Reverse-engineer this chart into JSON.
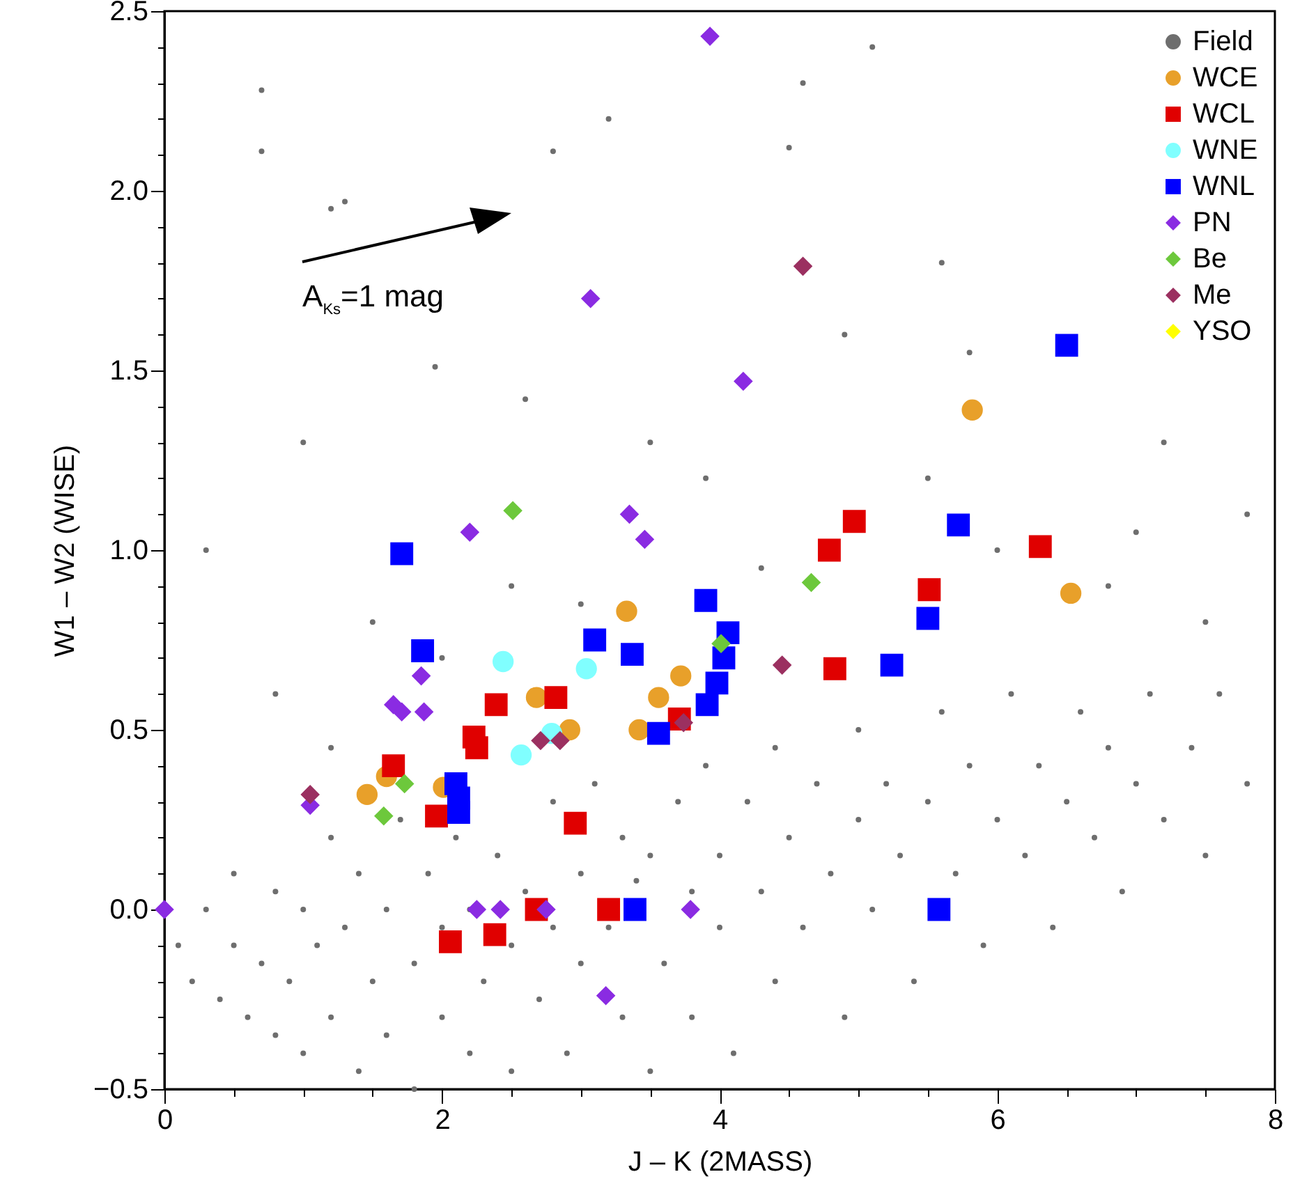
{
  "chart_data": {
    "type": "scatter",
    "xlabel": "J – K (2MASS)",
    "ylabel": "W1 – W2 (WISE)",
    "xlim": [
      0,
      8
    ],
    "ylim": [
      -0.5,
      2.5
    ],
    "xticks": [
      0,
      {
        "value": 0.5,
        "label": null
      },
      {
        "value": 1,
        "label": null
      },
      {
        "value": 1.5,
        "label": null
      },
      2,
      {
        "value": 2.5,
        "label": null
      },
      {
        "value": 3,
        "label": null
      },
      {
        "value": 3.5,
        "label": null
      },
      4,
      {
        "value": 4.5,
        "label": null
      },
      {
        "value": 5,
        "label": null
      },
      {
        "value": 5.5,
        "label": null
      },
      6,
      {
        "value": 6.5,
        "label": null
      },
      {
        "value": 7,
        "label": null
      },
      {
        "value": 7.5,
        "label": null
      },
      8
    ],
    "yticks": [
      {
        "value": -0.5,
        "label": "−0.5"
      },
      {
        "value": -0.4,
        "label": null
      },
      {
        "value": -0.3,
        "label": null
      },
      {
        "value": -0.2,
        "label": null
      },
      {
        "value": -0.1,
        "label": null
      },
      {
        "value": 0,
        "label": "0.0"
      },
      {
        "value": 0.1,
        "label": null
      },
      {
        "value": 0.2,
        "label": null
      },
      {
        "value": 0.3,
        "label": null
      },
      {
        "value": 0.4,
        "label": null
      },
      0.5,
      {
        "value": 0.6,
        "label": null
      },
      {
        "value": 0.7,
        "label": null
      },
      {
        "value": 0.8,
        "label": null
      },
      {
        "value": 0.9,
        "label": null
      },
      {
        "value": 1,
        "label": "1.0"
      },
      {
        "value": 1.1,
        "label": null
      },
      {
        "value": 1.2,
        "label": null
      },
      {
        "value": 1.3,
        "label": null
      },
      {
        "value": 1.4,
        "label": null
      },
      1.5,
      {
        "value": 1.6,
        "label": null
      },
      {
        "value": 1.7,
        "label": null
      },
      {
        "value": 1.8,
        "label": null
      },
      {
        "value": 1.9,
        "label": null
      },
      {
        "value": 2,
        "label": "2.0"
      },
      {
        "value": 2.1,
        "label": null
      },
      {
        "value": 2.2,
        "label": null
      },
      {
        "value": 2.3,
        "label": null
      },
      {
        "value": 2.4,
        "label": null
      },
      2.5
    ],
    "grid": false,
    "legend": "top right",
    "annotations": [
      "A$_{Ks}$=1 mag"
    ],
    "series": [
      {
        "name": "Field",
        "color": "#6e6e6e",
        "marker": "circle",
        "x": [
          0.1,
          0.2,
          0.3,
          0.4,
          0.5,
          0.5,
          0.6,
          0.7,
          0.8,
          0.8,
          0.9,
          1.0,
          1.0,
          1.1,
          1.2,
          1.2,
          1.3,
          1.4,
          1.4,
          1.5,
          1.6,
          1.6,
          1.7,
          1.8,
          1.8,
          1.9,
          2.0,
          2.0,
          2.1,
          2.2,
          2.2,
          2.3,
          2.4,
          2.5,
          2.5,
          2.6,
          2.7,
          2.8,
          2.8,
          2.9,
          3.0,
          3.0,
          3.1,
          3.2,
          3.3,
          3.3,
          3.4,
          3.5,
          3.5,
          3.6,
          3.7,
          3.8,
          3.8,
          3.9,
          4.0,
          4.0,
          4.1,
          4.2,
          4.3,
          4.4,
          4.4,
          4.5,
          4.6,
          4.7,
          4.8,
          4.9,
          5.0,
          5.0,
          5.1,
          5.2,
          5.3,
          5.4,
          5.5,
          5.6,
          5.7,
          5.8,
          5.9,
          6.0,
          6.1,
          6.2,
          6.3,
          6.4,
          6.5,
          6.6,
          6.7,
          6.8,
          6.9,
          7.0,
          7.1,
          7.2,
          7.4,
          7.5,
          7.6,
          7.8,
          0.7,
          0.7,
          1.2,
          1.3,
          2.8,
          1.95,
          2.6,
          3.5,
          4.6,
          5.1,
          5.6,
          4.9,
          7.2,
          7.8,
          0.3,
          1.5,
          0.8,
          2.5,
          3.9,
          5.5,
          6.8,
          7.5,
          1.2,
          2.0,
          3.0,
          4.3,
          6.0,
          7.0,
          4.5,
          3.2,
          1.0,
          5.8
        ],
        "values": [
          -0.1,
          -0.2,
          0.0,
          -0.25,
          -0.1,
          0.1,
          -0.3,
          -0.15,
          0.05,
          -0.35,
          -0.2,
          0.0,
          -0.4,
          -0.1,
          0.2,
          -0.3,
          -0.05,
          -0.45,
          0.1,
          -0.2,
          0.0,
          -0.35,
          0.25,
          -0.15,
          -0.5,
          0.1,
          -0.3,
          -0.05,
          0.2,
          -0.4,
          0.0,
          -0.2,
          0.15,
          -0.1,
          -0.45,
          0.05,
          -0.25,
          0.3,
          -0.05,
          -0.4,
          0.1,
          -0.15,
          0.35,
          -0.05,
          -0.3,
          0.2,
          0.08,
          -0.45,
          0.15,
          -0.15,
          0.3,
          0.05,
          -0.3,
          0.4,
          -0.05,
          0.15,
          -0.4,
          0.3,
          0.05,
          -0.2,
          0.45,
          0.2,
          -0.05,
          0.35,
          0.1,
          -0.3,
          0.25,
          0.5,
          0.0,
          0.35,
          0.15,
          -0.2,
          0.3,
          0.55,
          0.1,
          0.4,
          -0.1,
          0.25,
          0.6,
          0.15,
          0.4,
          -0.05,
          0.3,
          0.55,
          0.2,
          0.45,
          0.05,
          0.35,
          0.6,
          0.25,
          0.45,
          0.15,
          0.6,
          0.35,
          2.28,
          2.11,
          1.95,
          1.97,
          2.11,
          1.51,
          1.42,
          1.3,
          2.3,
          2.4,
          1.8,
          1.6,
          1.3,
          1.1,
          1.0,
          0.8,
          0.6,
          0.9,
          1.2,
          1.2,
          0.9,
          0.8,
          0.45,
          0.7,
          0.85,
          0.95,
          1.0,
          1.05,
          2.12,
          2.2,
          1.3,
          1.55
        ]
      },
      {
        "name": "WCE",
        "color": "#e8a02a",
        "marker": "circle",
        "x": [
          1.46,
          1.6,
          2.01,
          2.68,
          2.92,
          3.33,
          3.42,
          3.56,
          3.72,
          5.82,
          6.53
        ],
        "values": [
          0.32,
          0.37,
          0.34,
          0.59,
          0.5,
          0.83,
          0.5,
          0.59,
          0.65,
          1.39,
          0.88
        ]
      },
      {
        "name": "WCL",
        "color": "#e00000",
        "marker": "square",
        "x": [
          1.65,
          1.96,
          2.06,
          2.23,
          2.25,
          2.38,
          2.39,
          2.68,
          2.82,
          2.96,
          3.2,
          3.71,
          4.79,
          4.83,
          4.97,
          5.51,
          6.31
        ],
        "values": [
          0.4,
          0.26,
          -0.09,
          0.48,
          0.45,
          -0.07,
          0.57,
          0.0,
          0.59,
          0.24,
          0.0,
          0.53,
          1.0,
          0.67,
          1.08,
          0.89,
          1.01
        ]
      },
      {
        "name": "WNE",
        "color": "#80ffff",
        "marker": "circle",
        "x": [
          2.44,
          2.57,
          2.79,
          3.04
        ],
        "values": [
          0.69,
          0.43,
          0.49,
          0.67
        ]
      },
      {
        "name": "WNL",
        "color": "#0000ff",
        "marker": "square",
        "x": [
          1.71,
          1.86,
          2.1,
          2.12,
          2.12,
          3.1,
          3.37,
          3.56,
          3.39,
          3.9,
          4.06,
          4.03,
          3.98,
          3.91,
          5.24,
          5.5,
          5.72,
          5.58,
          6.5
        ],
        "values": [
          0.99,
          0.72,
          0.35,
          0.31,
          0.27,
          0.75,
          0.71,
          0.49,
          0.0,
          0.86,
          0.77,
          0.7,
          0.63,
          0.57,
          0.68,
          0.81,
          1.07,
          0.0,
          1.57
        ]
      },
      {
        "name": "PN",
        "color": "#8a2be2",
        "marker": "diamond",
        "x": [
          0.0,
          2.2,
          3.35,
          3.46,
          1.85,
          1.65,
          1.71,
          1.87,
          1.05,
          2.25,
          2.42,
          2.75,
          3.18,
          3.79,
          3.93,
          3.07,
          4.17
        ],
        "values": [
          0.0,
          1.05,
          1.1,
          1.03,
          0.65,
          0.57,
          0.55,
          0.55,
          0.29,
          0.0,
          0.0,
          0.0,
          -0.24,
          0.0,
          2.43,
          1.7,
          1.47
        ]
      },
      {
        "name": "Be",
        "color": "#6dc83c",
        "marker": "diamond",
        "x": [
          2.51,
          1.73,
          1.58,
          4.66,
          4.01
        ],
        "values": [
          1.11,
          0.35,
          0.26,
          0.91,
          0.74
        ]
      },
      {
        "name": "Me",
        "color": "#9b3060",
        "marker": "diamond",
        "x": [
          1.05,
          2.71,
          2.85,
          4.45,
          3.74,
          4.6
        ],
        "values": [
          0.32,
          0.47,
          0.47,
          0.68,
          0.52,
          1.79
        ]
      },
      {
        "name": "YSO",
        "color": "#ffff00",
        "marker": "diamond"
      }
    ]
  }
}
